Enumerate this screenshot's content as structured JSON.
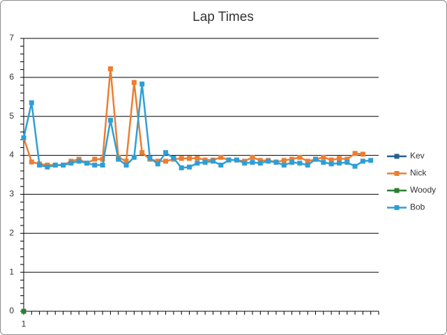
{
  "chart_data": {
    "type": "line",
    "title": "Lap Times",
    "categories": [
      "1",
      null,
      null,
      null,
      null,
      null,
      null,
      null,
      null,
      null,
      null,
      null,
      null,
      null,
      null,
      null,
      null,
      null,
      null,
      null,
      null,
      null,
      null,
      null,
      null,
      null,
      null,
      null,
      null,
      null,
      null,
      null,
      null,
      null,
      null,
      null,
      null,
      null,
      null,
      null,
      null,
      null,
      null,
      null,
      null
    ],
    "series": [
      {
        "name": "Kev",
        "color": "#255e91",
        "values": [
          0,
          null,
          null,
          null,
          null,
          null,
          null,
          null,
          null,
          null,
          null,
          null,
          null,
          null,
          null,
          null,
          null,
          null,
          null,
          null,
          null,
          null,
          null,
          null,
          null,
          null,
          null,
          null,
          null,
          null,
          null,
          null,
          null,
          null,
          null,
          null,
          null,
          null,
          null,
          null,
          null,
          null,
          null,
          null,
          null
        ]
      },
      {
        "name": "Nick",
        "color": "#ed7d31",
        "values": [
          4.45,
          3.83,
          3.78,
          3.75,
          3.75,
          3.75,
          3.85,
          3.9,
          3.8,
          3.9,
          3.9,
          6.22,
          3.95,
          3.85,
          5.87,
          4.07,
          3.9,
          3.85,
          3.85,
          3.9,
          3.92,
          3.92,
          3.93,
          3.88,
          3.88,
          3.95,
          3.88,
          3.88,
          3.85,
          3.95,
          3.87,
          3.87,
          3.83,
          3.87,
          3.9,
          3.95,
          3.85,
          3.9,
          3.95,
          3.88,
          3.92,
          3.9,
          4.05,
          4.03,
          null
        ]
      },
      {
        "name": "Woody",
        "color": "#2e7d32",
        "values": [
          0,
          null,
          null,
          null,
          null,
          null,
          null,
          null,
          null,
          null,
          null,
          null,
          null,
          null,
          null,
          null,
          null,
          null,
          null,
          null,
          null,
          null,
          null,
          null,
          null,
          null,
          null,
          null,
          null,
          null,
          null,
          null,
          null,
          null,
          null,
          null,
          null,
          null,
          null,
          null,
          null,
          null,
          null,
          null,
          null
        ]
      },
      {
        "name": "Bob",
        "color": "#2e9fd6",
        "values": [
          4.45,
          5.35,
          3.75,
          3.7,
          3.75,
          3.75,
          3.8,
          3.85,
          3.8,
          3.75,
          3.75,
          4.9,
          3.9,
          3.75,
          3.95,
          5.83,
          3.93,
          3.78,
          4.07,
          3.93,
          3.68,
          3.7,
          3.8,
          3.82,
          3.85,
          3.75,
          3.88,
          3.88,
          3.8,
          3.82,
          3.8,
          3.85,
          3.82,
          3.75,
          3.82,
          3.8,
          3.75,
          3.9,
          3.82,
          3.78,
          3.8,
          3.82,
          3.72,
          3.85,
          3.87
        ]
      }
    ],
    "ylim": [
      0,
      7
    ],
    "yticks": [
      0,
      1,
      2,
      3,
      4,
      5,
      6,
      7
    ],
    "grid": true,
    "legend": "right"
  }
}
